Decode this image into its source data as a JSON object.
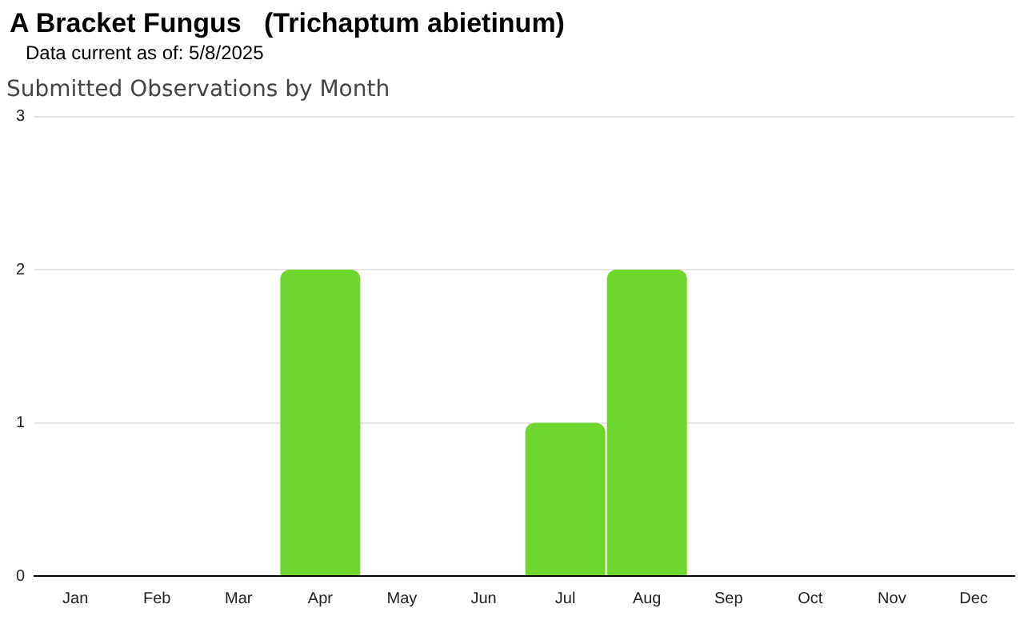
{
  "chart_data": {
    "type": "bar",
    "title": "A Bracket Fungus   (Trichaptum abietinum)",
    "subtitle": "Data current as of: 5/8/2025",
    "annotations": [
      "Submitted Observations by Month"
    ],
    "categories": [
      "Jan",
      "Feb",
      "Mar",
      "Apr",
      "May",
      "Jun",
      "Jul",
      "Aug",
      "Sep",
      "Oct",
      "Nov",
      "Dec"
    ],
    "values": [
      0,
      0,
      0,
      2,
      0,
      0,
      1,
      2,
      0,
      0,
      0,
      0
    ],
    "color": "#6fd62e",
    "ylim": [
      0,
      3
    ],
    "yticks": [
      0,
      1,
      2,
      3
    ],
    "grid": "y"
  }
}
